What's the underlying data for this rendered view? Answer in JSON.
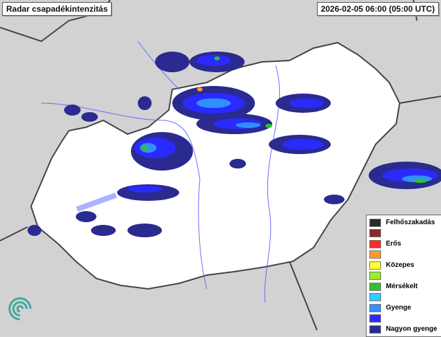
{
  "header": {
    "title": "Radar csapadékintenzitás",
    "timestamp": "2026-02-05 06:00 (05:00 UTC)"
  },
  "legend": {
    "items": [
      {
        "label": "Felhőszakadás",
        "color": "#2b2b2b"
      },
      {
        "label": "",
        "color": "#8b2a2a"
      },
      {
        "label": "Erős",
        "color": "#ff2a2a"
      },
      {
        "label": "",
        "color": "#ff9a2a"
      },
      {
        "label": "Közepes",
        "color": "#ffff30"
      },
      {
        "label": "",
        "color": "#99ee30"
      },
      {
        "label": "Mérsékelt",
        "color": "#30c030"
      },
      {
        "label": "",
        "color": "#30ccff"
      },
      {
        "label": "Gyenge",
        "color": "#3090ff"
      },
      {
        "label": "",
        "color": "#2a2aff"
      },
      {
        "label": "Nagyon gyenge",
        "color": "#2a2a90"
      }
    ]
  },
  "colors": {
    "land": "#ffffff",
    "background": "#d4d4d4",
    "river": "#6a6aff",
    "border": "#444444"
  },
  "logo": {
    "icon": "swirl-logo-icon"
  }
}
